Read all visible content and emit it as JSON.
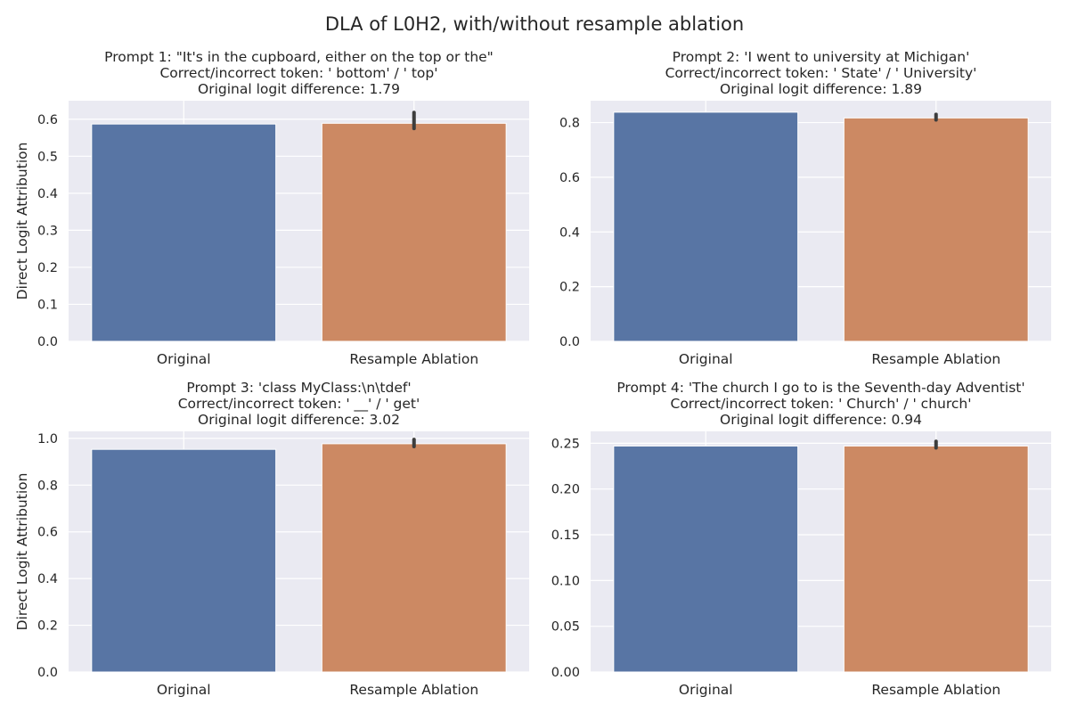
{
  "figure": {
    "suptitle": "DLA of L0H2, with/without resample ablation",
    "colors": {
      "background": "#ffffff",
      "plot_area": "#eaeaf2",
      "grid": "#ffffff",
      "text": "#262626",
      "error_bar": "#3d3d3d"
    }
  },
  "chart_data": [
    {
      "type": "bar",
      "title_lines": [
        "Prompt 1: \"It's in the cupboard, either on the top or the\"",
        "Correct/incorrect token: ' bottom' / ' top'",
        "Original logit difference: 1.79"
      ],
      "xlabel": "",
      "ylabel": "Direct Logit Attribution",
      "categories": [
        "Original",
        "Resample Ablation"
      ],
      "values": [
        0.587,
        0.589
      ],
      "error": [
        null,
        [
          0.575,
          0.618
        ]
      ],
      "colors": [
        "#5875a4",
        "#cc8963"
      ],
      "ylim": [
        0,
        0.65
      ],
      "yticks": [
        0.0,
        0.1,
        0.2,
        0.3,
        0.4,
        0.5,
        0.6
      ],
      "ytick_labels": [
        "0.0",
        "0.1",
        "0.2",
        "0.3",
        "0.4",
        "0.5",
        "0.6"
      ],
      "grid": true
    },
    {
      "type": "bar",
      "title_lines": [
        "Prompt 2: 'I went to university at Michigan'",
        "Correct/incorrect token: ' State' / ' University'",
        "Original logit difference: 1.89"
      ],
      "xlabel": "",
      "ylabel": "",
      "categories": [
        "Original",
        "Resample Ablation"
      ],
      "values": [
        0.838,
        0.817
      ],
      "error": [
        null,
        [
          0.81,
          0.83
        ]
      ],
      "colors": [
        "#5875a4",
        "#cc8963"
      ],
      "ylim": [
        0,
        0.88
      ],
      "yticks": [
        0.0,
        0.2,
        0.4,
        0.6,
        0.8
      ],
      "ytick_labels": [
        "0.0",
        "0.2",
        "0.4",
        "0.6",
        "0.8"
      ],
      "grid": true
    },
    {
      "type": "bar",
      "title_lines": [
        "Prompt 3: 'class MyClass:\\n\\tdef'",
        "Correct/incorrect token: ' __' / ' get'",
        "Original logit difference: 3.02"
      ],
      "xlabel": "",
      "ylabel": "Direct Logit Attribution",
      "categories": [
        "Original",
        "Resample Ablation"
      ],
      "values": [
        0.953,
        0.977
      ],
      "error": [
        null,
        [
          0.965,
          0.995
        ]
      ],
      "colors": [
        "#5875a4",
        "#cc8963"
      ],
      "ylim": [
        0,
        1.03
      ],
      "yticks": [
        0.0,
        0.2,
        0.4,
        0.6,
        0.8,
        1.0
      ],
      "ytick_labels": [
        "0.0",
        "0.2",
        "0.4",
        "0.6",
        "0.8",
        "1.0"
      ],
      "grid": true
    },
    {
      "type": "bar",
      "title_lines": [
        "Prompt 4: 'The church I go to is the Seventh-day Adventist'",
        "Correct/incorrect token: ' Church' / ' church'",
        "Original logit difference: 0.94"
      ],
      "xlabel": "",
      "ylabel": "",
      "categories": [
        "Original",
        "Resample Ablation"
      ],
      "values": [
        0.247,
        0.247
      ],
      "error": [
        null,
        [
          0.245,
          0.252
        ]
      ],
      "colors": [
        "#5875a4",
        "#cc8963"
      ],
      "ylim": [
        0,
        0.263
      ],
      "yticks": [
        0.0,
        0.05,
        0.1,
        0.15,
        0.2,
        0.25
      ],
      "ytick_labels": [
        "0.00",
        "0.05",
        "0.10",
        "0.15",
        "0.20",
        "0.25"
      ],
      "grid": true
    }
  ]
}
